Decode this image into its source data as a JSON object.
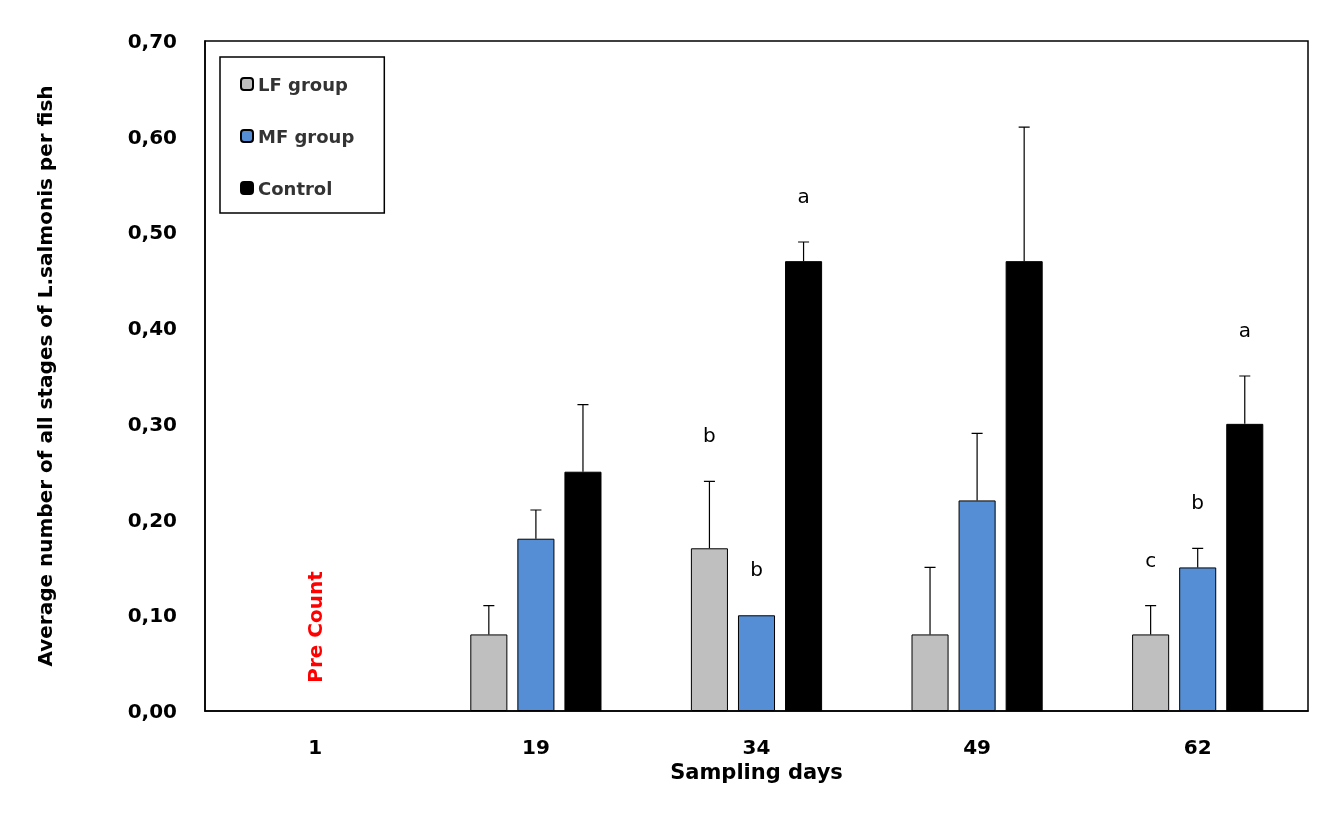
{
  "chart_data": {
    "type": "bar",
    "xlabel": "Sampling days",
    "ylabel": "Average number of all stages of L.salmonis per fish",
    "categories": [
      "1",
      "19",
      "34",
      "49",
      "62"
    ],
    "series": [
      {
        "name": "LF group",
        "color": "#bfbfbf",
        "values": [
          null,
          0.08,
          0.17,
          0.08,
          0.08
        ],
        "errors": [
          null,
          [
            0.08,
            0.11
          ],
          [
            0.17,
            0.24
          ],
          [
            0.08,
            0.15
          ],
          [
            0.08,
            0.11
          ]
        ]
      },
      {
        "name": "MF group",
        "color": "#558ed5",
        "values": [
          null,
          0.18,
          0.1,
          0.22,
          0.15
        ],
        "errors": [
          null,
          [
            0.18,
            0.21
          ],
          null,
          [
            0.22,
            0.29
          ],
          [
            0.15,
            0.17
          ]
        ]
      },
      {
        "name": "Control",
        "color": "#000000",
        "values": [
          null,
          0.25,
          0.47,
          0.47,
          0.3
        ],
        "errors": [
          null,
          [
            0.25,
            0.32
          ],
          [
            0.47,
            0.49
          ],
          [
            0.47,
            0.61
          ],
          [
            0.3,
            0.35
          ]
        ]
      }
    ],
    "ylim": [
      0,
      0.7
    ],
    "yticks": [
      {
        "value": 0,
        "label": "0,00"
      },
      {
        "value": 0.1,
        "label": "0,10"
      },
      {
        "value": 0.2,
        "label": "0,20"
      },
      {
        "value": 0.3,
        "label": "0,30"
      },
      {
        "value": 0.4,
        "label": "0,40"
      },
      {
        "value": 0.5,
        "label": "0,50"
      },
      {
        "value": 0.6,
        "label": "0,60"
      },
      {
        "value": 0.7,
        "label": "0,70"
      }
    ],
    "grid": false,
    "legend": "top left",
    "annotations": [
      "Pre Count",
      "b",
      "b",
      "a",
      "c",
      "b",
      "a"
    ]
  }
}
